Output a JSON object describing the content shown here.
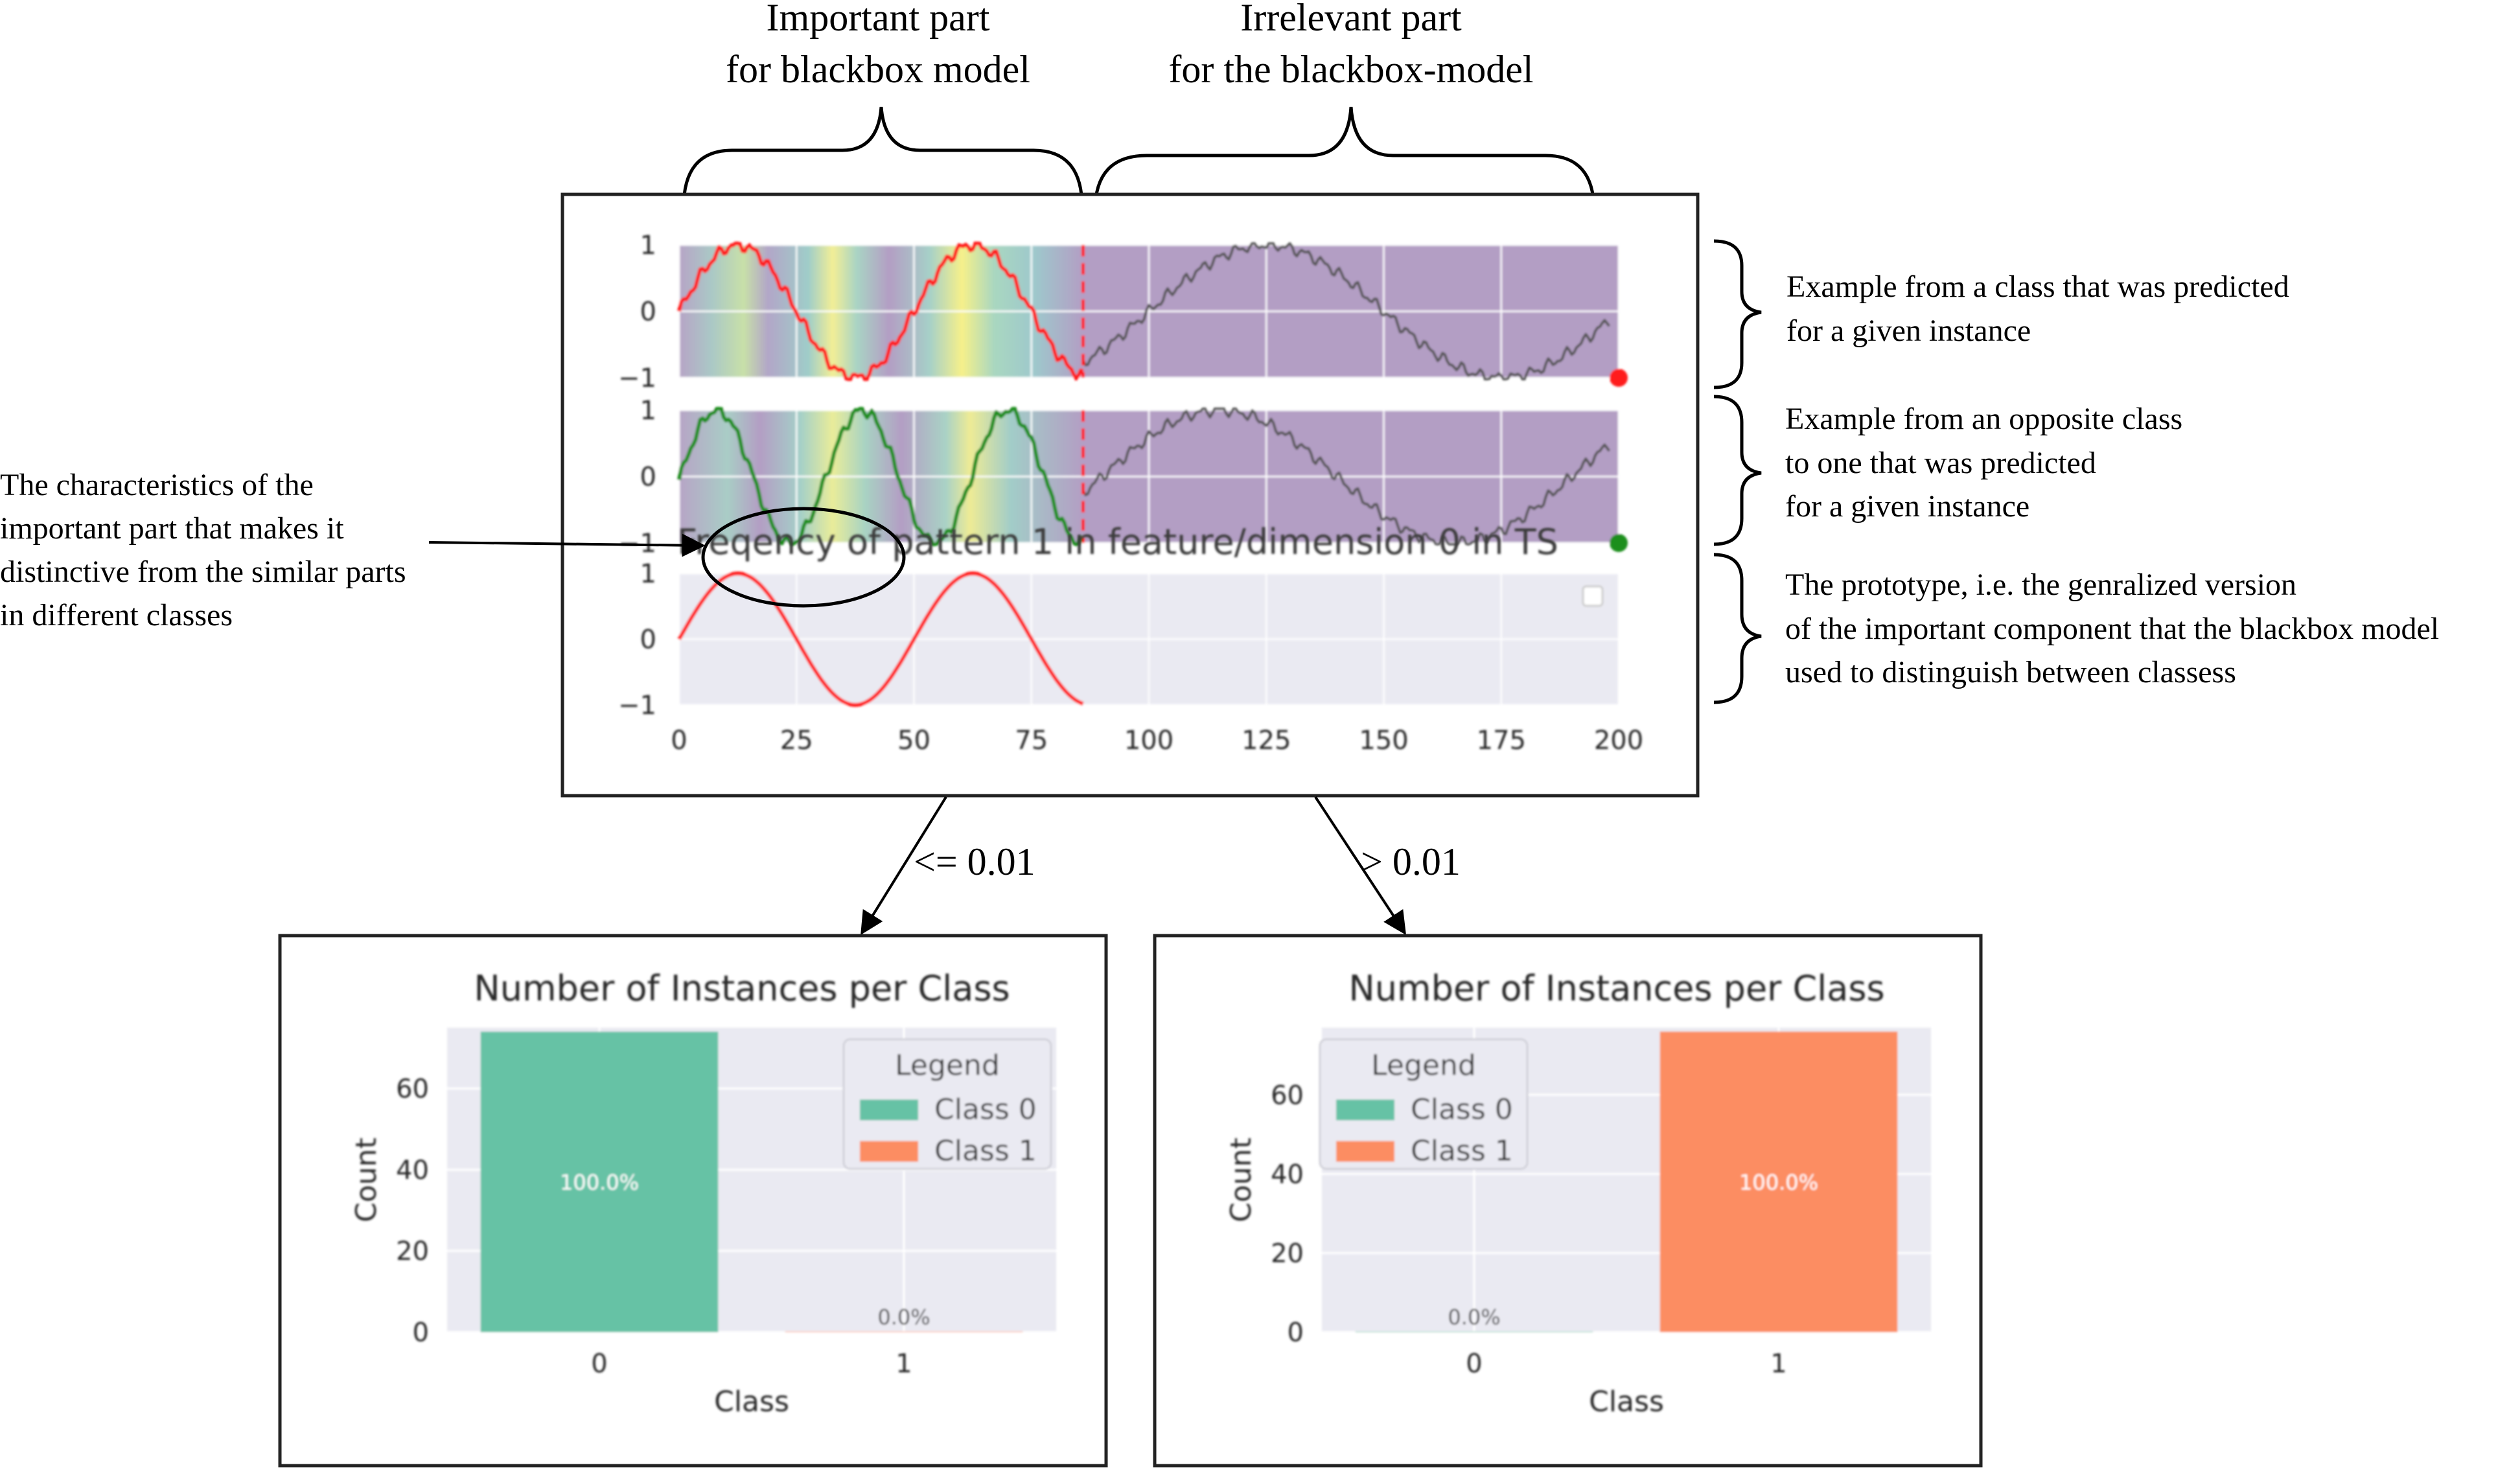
{
  "annotations": {
    "important_part": [
      "Important part",
      "for blackbox model"
    ],
    "irrelevant_part": [
      "Irrelevant part",
      "for the blackbox-model"
    ],
    "predicted_example": [
      "Example from a class that was predicted",
      "for a given instance"
    ],
    "opposite_example": [
      "Example from an opposite class",
      "to one that was predicted",
      "for a given instance"
    ],
    "prototype": [
      "The prototype, i.e. the genralized version",
      "of the important component that the blackbox model",
      "used  to distinguish between classess"
    ],
    "characteristics": [
      "The characteristics of the",
      "important part that makes it",
      "distinctive from the similar parts",
      "in different classes"
    ]
  },
  "split": {
    "left_label": "<= 0.01",
    "right_label": "> 0.01"
  },
  "colors": {
    "predicted": "#ff1a1a",
    "opposite": "#1f8f1f",
    "background_series": "#555555",
    "cutoff_line": "#ff0000",
    "class0": "#66c2a5",
    "class1": "#fc8d62",
    "plot_bg": "#eaeaf2",
    "heat_low": "#b39ec4",
    "heat_mid": "#a6d0c8",
    "heat_high": "#f5f08c"
  },
  "chart_data": [
    {
      "type": "line",
      "panel": "predicted-class-example",
      "xlim": [
        0,
        200
      ],
      "ylim": [
        -1,
        1
      ],
      "yticks": [
        "1",
        "0",
        "−1"
      ],
      "important_until": 86,
      "series": [
        {
          "role": "important",
          "color": "red",
          "x_range": [
            0,
            86
          ],
          "period": 50,
          "phase": 12.5,
          "values_min": -1,
          "values_max": 1
        },
        {
          "role": "irrelevant",
          "color": "gray",
          "x_range": [
            86,
            198
          ],
          "period": 100,
          "phase": 125,
          "values_min": -1,
          "values_max": 1
        }
      ],
      "marker_color": "red"
    },
    {
      "type": "line",
      "panel": "opposite-class-example",
      "xlim": [
        0,
        200
      ],
      "ylim": [
        -1,
        1
      ],
      "yticks": [
        "1",
        "0",
        "−1"
      ],
      "important_until": 86,
      "series": [
        {
          "role": "important",
          "color": "green",
          "x_range": [
            0,
            86
          ],
          "period": 31,
          "phase": 8,
          "values_min": -1,
          "values_max": 1
        },
        {
          "role": "irrelevant",
          "color": "gray",
          "x_range": [
            86,
            198
          ],
          "period": 100,
          "phase": 115,
          "values_min": -1,
          "values_max": 1
        }
      ],
      "marker_color": "green"
    },
    {
      "type": "line",
      "panel": "prototype",
      "title": "Freqency of pattern 1 in feature/dimension 0 in TS",
      "xlim": [
        0,
        200
      ],
      "ylim": [
        -1,
        1
      ],
      "yticks": [
        "1",
        "0",
        "−1"
      ],
      "xticks": [
        "0",
        "25",
        "50",
        "75",
        "100",
        "125",
        "150",
        "175",
        "200"
      ],
      "series": [
        {
          "role": "prototype",
          "color": "red",
          "x_range": [
            0,
            86
          ],
          "period": 50,
          "phase": 12.5,
          "values_min": -1,
          "values_max": 1
        }
      ]
    },
    {
      "type": "bar",
      "panel": "left-leaf",
      "title": "Number of Instances per Class",
      "xlabel": "Class",
      "ylabel": "Count",
      "categories": [
        "0",
        "1"
      ],
      "values": [
        74,
        0
      ],
      "percent_labels": [
        "100.0%",
        "0.0%"
      ],
      "ylim": [
        0,
        75
      ],
      "yticks": [
        "0",
        "20",
        "40",
        "60"
      ],
      "legend": {
        "title": "Legend",
        "entries": [
          "Class 0",
          "Class 1"
        ],
        "placement": "top-right"
      }
    },
    {
      "type": "bar",
      "panel": "right-leaf",
      "title": "Number of Instances per Class",
      "xlabel": "Class",
      "ylabel": "Count",
      "categories": [
        "0",
        "1"
      ],
      "values": [
        0,
        76
      ],
      "percent_labels": [
        "0.0%",
        "100.0%"
      ],
      "ylim": [
        0,
        77
      ],
      "yticks": [
        "0",
        "20",
        "40",
        "60"
      ],
      "legend": {
        "title": "Legend",
        "entries": [
          "Class 0",
          "Class 1"
        ],
        "placement": "top-left"
      }
    }
  ]
}
